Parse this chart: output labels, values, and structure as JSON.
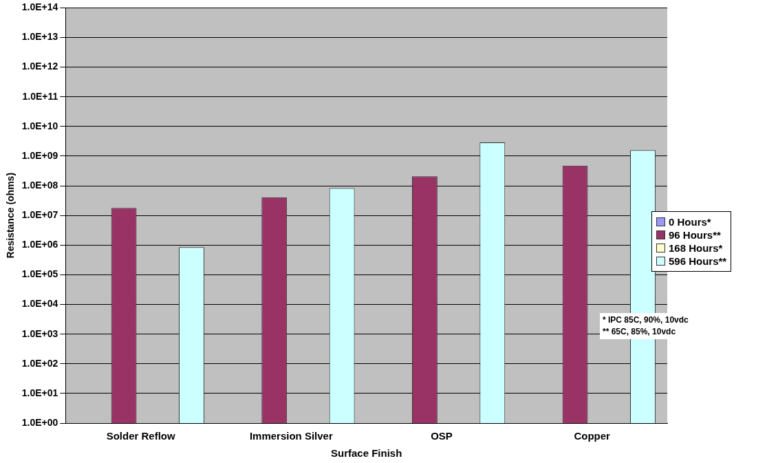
{
  "chart_data": {
    "type": "bar",
    "xlabel": "Surface Finish",
    "ylabel": "Resistance (ohms)",
    "categories": [
      "Solder Reflow",
      "Immersion Silver",
      "OSP",
      "Copper"
    ],
    "series": [
      {
        "name": "0 Hours*",
        "color": "#9999ff",
        "values": [
          null,
          null,
          null,
          null
        ]
      },
      {
        "name": "96 Hours**",
        "color": "#993366",
        "values": [
          18000000,
          41000000,
          210000000,
          480000000
        ]
      },
      {
        "name": "168 Hours*",
        "color": "#ffffcc",
        "values": [
          null,
          null,
          null,
          null
        ]
      },
      {
        "name": "596 Hours**",
        "color": "#ccffff",
        "values": [
          860000,
          83000000,
          2900000000,
          1600000000
        ]
      }
    ],
    "log": "y",
    "ylim": [
      1,
      100000000000000
    ],
    "yticks": [
      {
        "value": 1,
        "label": "1.0E+00"
      },
      {
        "value": 10,
        "label": "1.0E+01"
      },
      {
        "value": 100,
        "label": "1.0E+02"
      },
      {
        "value": 1000,
        "label": "1.0E+03"
      },
      {
        "value": 10000,
        "label": "1.0E+04"
      },
      {
        "value": 100000,
        "label": "1.0E+05"
      },
      {
        "value": 1000000,
        "label": "1.0E+06"
      },
      {
        "value": 10000000,
        "label": "1.0E+07"
      },
      {
        "value": 100000000,
        "label": "1.0E+08"
      },
      {
        "value": 1000000000,
        "label": "1.0E+09"
      },
      {
        "value": 10000000000,
        "label": "1.0E+10"
      },
      {
        "value": 100000000000,
        "label": "1.0E+11"
      },
      {
        "value": 1000000000000,
        "label": "1.0E+12"
      },
      {
        "value": 10000000000000,
        "label": "1.0E+13"
      },
      {
        "value": 100000000000000,
        "label": "1.0E+14"
      }
    ],
    "grid": "y",
    "legend": "right",
    "annotations": [
      "* IPC 85C, 90%, 10vdc",
      "** 65C, 85%, 10vdc"
    ]
  }
}
